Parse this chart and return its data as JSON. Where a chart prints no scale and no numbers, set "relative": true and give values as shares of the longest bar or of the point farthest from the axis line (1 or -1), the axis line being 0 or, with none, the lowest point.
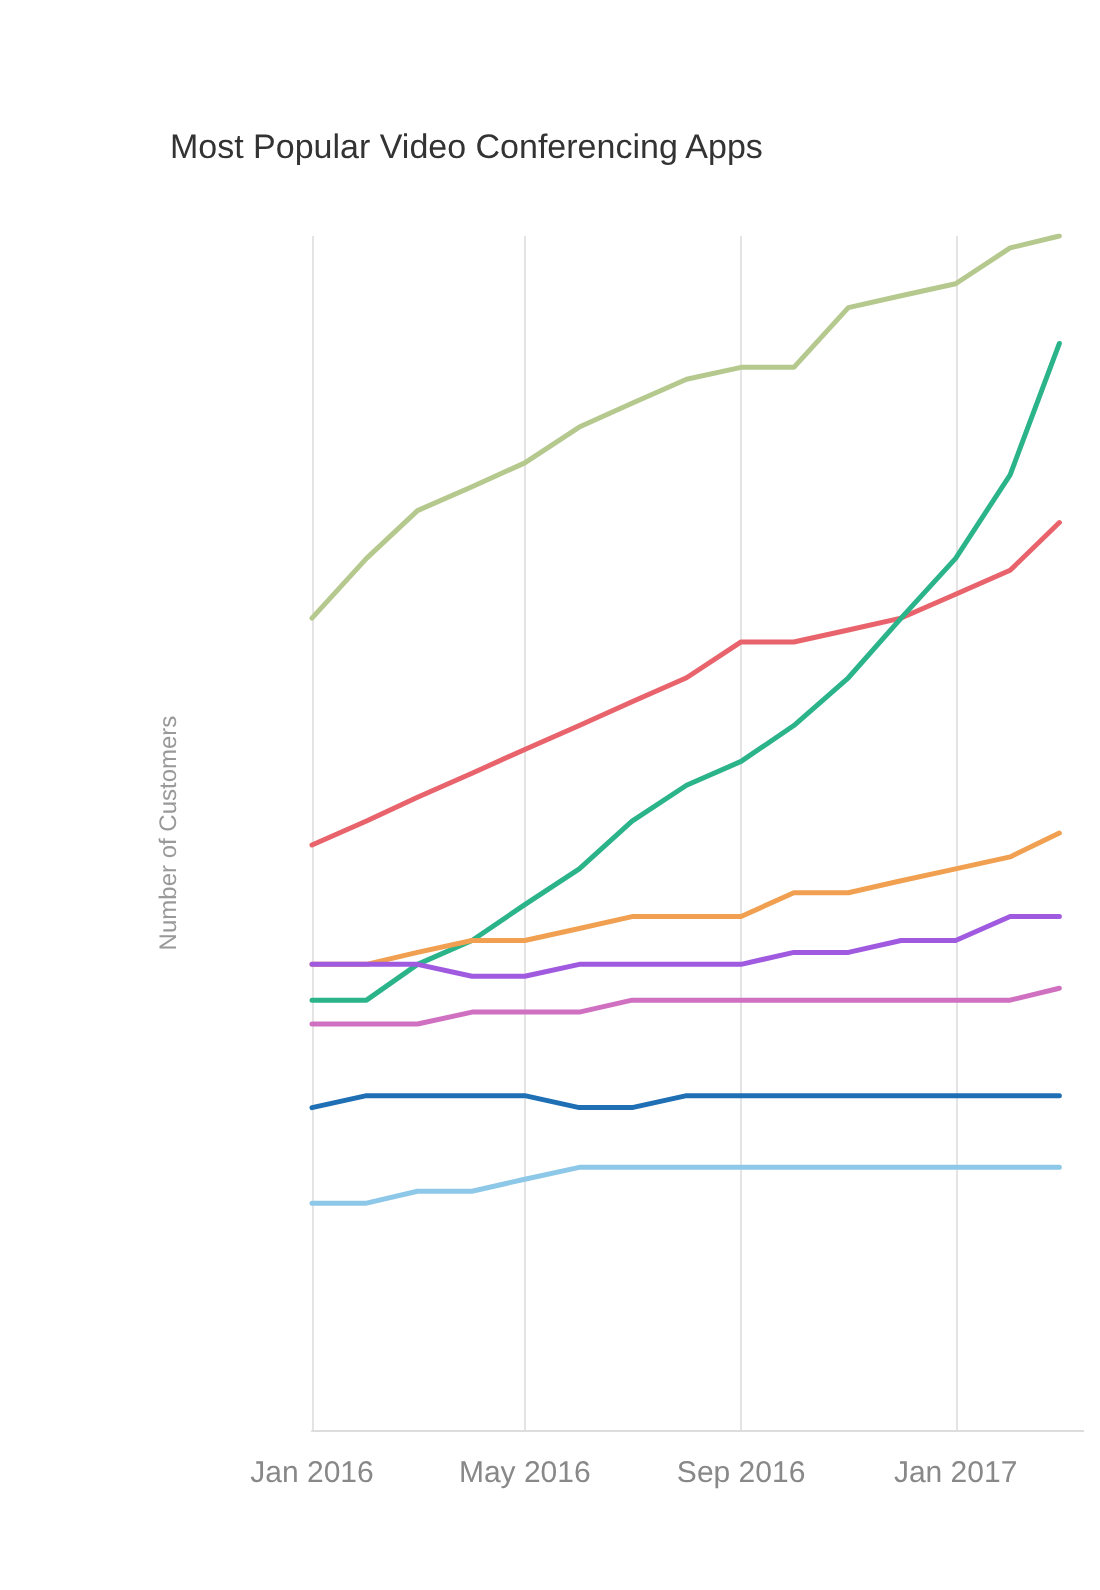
{
  "chart_data": {
    "type": "line",
    "title": "Most Popular Video Conferencing Apps",
    "ylabel": "Number of Customers",
    "relative": true,
    "grid": "x",
    "tick_labels": "x",
    "marker": "none",
    "line_style": "solid",
    "x": [
      "2016-01",
      "2016-02",
      "2016-03",
      "2016-04",
      "2016-05",
      "2016-06",
      "2016-07",
      "2016-08",
      "2016-09",
      "2016-10",
      "2016-11",
      "2016-12",
      "2017-01",
      "2017-02",
      "2017-03"
    ],
    "xlim": [
      "2016-01-01",
      "2017-03-15"
    ],
    "xticks": [
      {
        "value": "2016-01-01",
        "label": "Jan 2016"
      },
      {
        "value": "2016-05-01",
        "label": "May 2016"
      },
      {
        "value": "2016-09-01",
        "label": "Sep 2016"
      },
      {
        "value": "2017-01-01",
        "label": "Jan 2017"
      }
    ],
    "series": [
      {
        "color": "#b5c98e",
        "values": [
          0.68,
          0.73,
          0.77,
          0.79,
          0.81,
          0.84,
          0.86,
          0.88,
          0.89,
          0.89,
          0.94,
          0.95,
          0.96,
          0.99,
          1
        ]
      },
      {
        "color": "#e8636b",
        "values": [
          0.49,
          0.51,
          0.53,
          0.55,
          0.57,
          0.59,
          0.61,
          0.63,
          0.66,
          0.66,
          0.67,
          0.68,
          0.7,
          0.72,
          0.76
        ]
      },
      {
        "color": "#2bb38a",
        "values": [
          0.36,
          0.36,
          0.39,
          0.41,
          0.44,
          0.47,
          0.51,
          0.54,
          0.56,
          0.59,
          0.63,
          0.68,
          0.73,
          0.8,
          0.91
        ]
      },
      {
        "color": "#f0a050",
        "values": [
          0.39,
          0.39,
          0.4,
          0.41,
          0.41,
          0.42,
          0.43,
          0.43,
          0.43,
          0.45,
          0.45,
          0.46,
          0.47,
          0.48,
          0.5
        ]
      },
      {
        "color": "#a05ae0",
        "values": [
          0.39,
          0.39,
          0.39,
          0.38,
          0.38,
          0.39,
          0.39,
          0.39,
          0.39,
          0.4,
          0.4,
          0.41,
          0.41,
          0.43,
          0.43
        ]
      },
      {
        "color": "#d070c0",
        "values": [
          0.34,
          0.34,
          0.34,
          0.35,
          0.35,
          0.35,
          0.36,
          0.36,
          0.36,
          0.36,
          0.36,
          0.36,
          0.36,
          0.36,
          0.37
        ]
      },
      {
        "color": "#1f6fb5",
        "values": [
          0.27,
          0.28,
          0.28,
          0.28,
          0.28,
          0.27,
          0.27,
          0.28,
          0.28,
          0.28,
          0.28,
          0.28,
          0.28,
          0.28,
          0.28
        ]
      },
      {
        "color": "#8ec8e8",
        "values": [
          0.19,
          0.19,
          0.2,
          0.2,
          0.21,
          0.22,
          0.22,
          0.22,
          0.22,
          0.22,
          0.22,
          0.22,
          0.22,
          0.22,
          0.22
        ]
      }
    ]
  }
}
